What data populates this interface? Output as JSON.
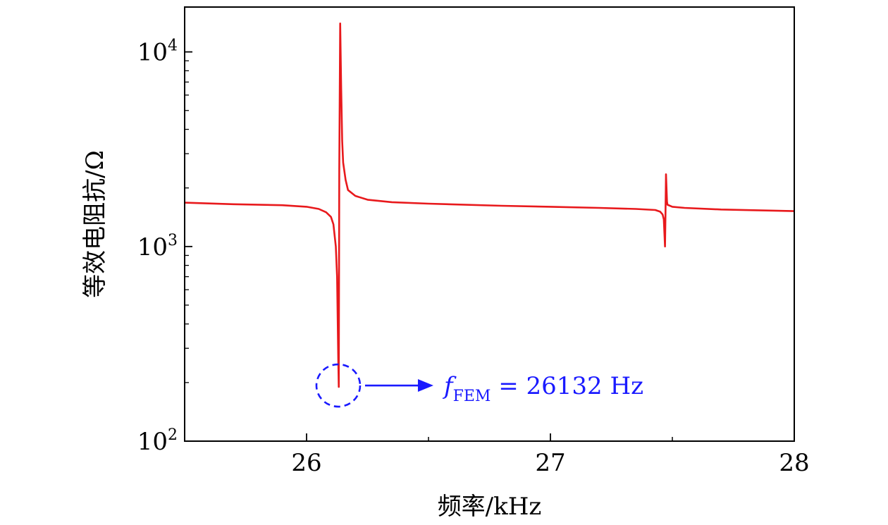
{
  "chart_data": {
    "type": "line",
    "xlabel": "频率/kHz",
    "ylabel": "等效电阻抗/Ω",
    "xlim": [
      25.5,
      28
    ],
    "ylim": [
      100,
      17000
    ],
    "yscale": "log",
    "x_ticks": [
      {
        "value": 26,
        "label": "26"
      },
      {
        "value": 27,
        "label": "27"
      },
      {
        "value": 28,
        "label": "28"
      }
    ],
    "x_minor_ticks": [
      25.5,
      26.5,
      27.5
    ],
    "y_ticks": [
      {
        "value": 100,
        "base": "10",
        "exp": "2"
      },
      {
        "value": 1000,
        "base": "10",
        "exp": "3"
      },
      {
        "value": 10000,
        "base": "10",
        "exp": "4"
      }
    ],
    "grid": false,
    "series": [
      {
        "color": "#e8191c",
        "x": [
          25.5,
          25.7,
          25.9,
          26.0,
          26.05,
          26.08,
          26.1,
          26.11,
          26.12,
          26.125,
          26.13,
          26.132,
          26.134,
          26.138,
          26.142,
          26.146,
          26.15,
          26.16,
          26.17,
          26.2,
          26.25,
          26.35,
          26.5,
          26.8,
          27.0,
          27.2,
          27.35,
          27.43,
          27.45,
          27.46,
          27.465,
          27.47,
          27.472,
          27.474,
          27.478,
          27.48,
          27.5,
          27.55,
          27.7,
          28.0
        ],
        "y": [
          1680,
          1650,
          1630,
          1600,
          1560,
          1500,
          1420,
          1300,
          1000,
          700,
          260,
          190,
          2500,
          14000,
          6500,
          3500,
          2700,
          2200,
          1950,
          1820,
          1740,
          1690,
          1660,
          1620,
          1600,
          1580,
          1560,
          1540,
          1510,
          1460,
          1380,
          1000,
          1500,
          2350,
          1700,
          1640,
          1600,
          1580,
          1550,
          1520
        ]
      }
    ],
    "annotation": {
      "color": "#1a1aff",
      "x": 26.13,
      "y": 190,
      "f": "f",
      "sub": "FEM",
      "rest": " = 26132  Hz"
    }
  }
}
